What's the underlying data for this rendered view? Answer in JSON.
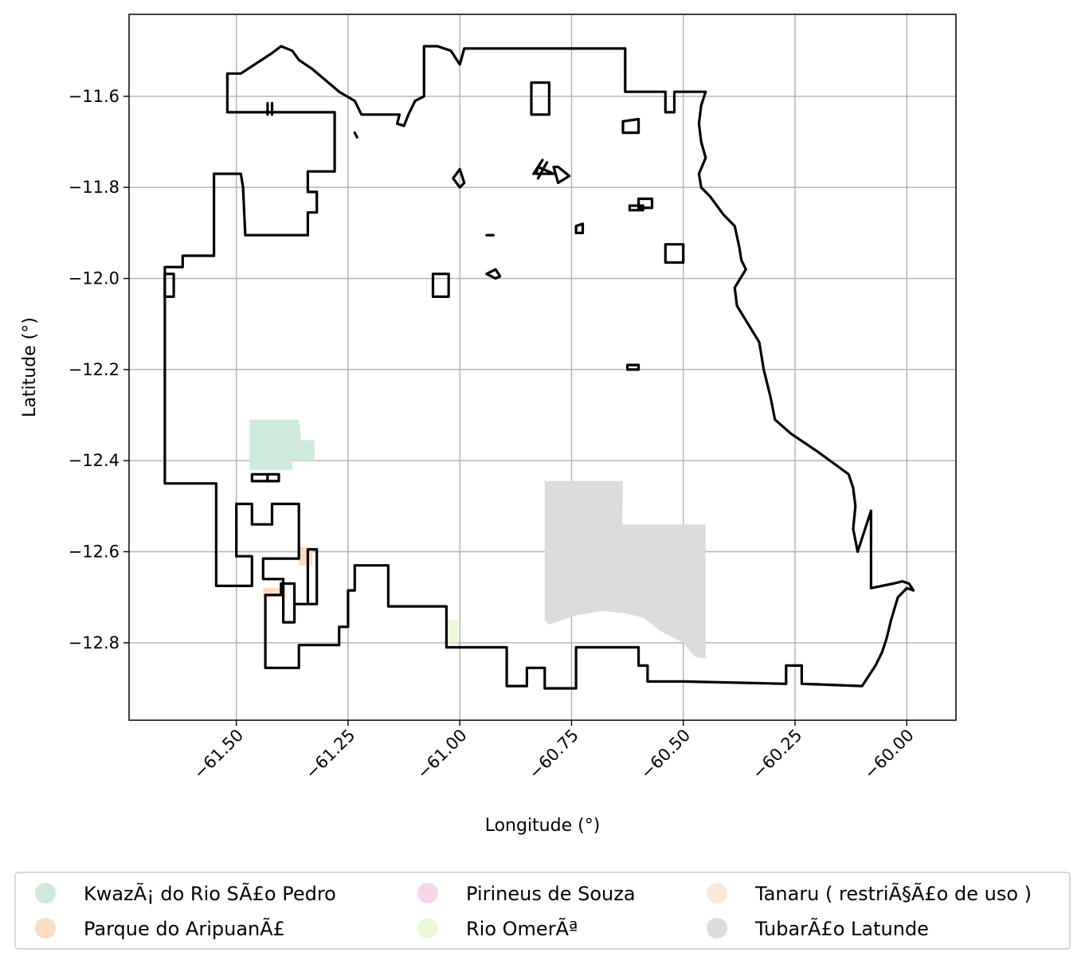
{
  "axes": {
    "xlabel": "Longitude (°)",
    "ylabel": "Latitude (°)",
    "x_ticks": [
      "−61.50",
      "−61.25",
      "−61.00",
      "−60.75",
      "−60.50",
      "−60.25",
      "−60.00"
    ],
    "y_ticks": [
      "−11.6",
      "−11.8",
      "−12.0",
      "−12.2",
      "−12.4",
      "−12.6",
      "−12.8"
    ],
    "grid": true
  },
  "legend": {
    "placement": "bottom",
    "items": [
      {
        "label": "KwazÃ¡ do Rio SÃ£o Pedro",
        "color": "#cdeadb"
      },
      {
        "label": "Parque do AripuanÃ£",
        "color": "#fbdcc4"
      },
      {
        "label": "Pirineus de Souza",
        "color": "#f6d6ea"
      },
      {
        "label": "Rio OmerÃª",
        "color": "#eaf7d8"
      },
      {
        "label": "Tanaru ( restriÃ§Ã£o de uso )",
        "color": "#f8e8d8"
      },
      {
        "label": "TubarÃ£o Latunde",
        "color": "#dcdcdc"
      }
    ]
  },
  "chart_data": {
    "type": "map",
    "xlabel": "Longitude (°)",
    "ylabel": "Latitude (°)",
    "xlim": [
      -61.74,
      -59.89
    ],
    "ylim": [
      -12.97,
      -11.42
    ],
    "x_ticks": [
      -61.5,
      -61.25,
      -61.0,
      -60.75,
      -60.5,
      -60.25,
      -60.0
    ],
    "y_ticks": [
      -11.6,
      -11.8,
      -12.0,
      -12.2,
      -12.4,
      -12.6,
      -12.8
    ],
    "grid": true,
    "regions": [
      {
        "name": "KwazÃ¡ do Rio SÃ£o Pedro",
        "color": "#cdeadb",
        "polygon": [
          [
            -61.47,
            -12.31
          ],
          [
            -61.36,
            -12.31
          ],
          [
            -61.355,
            -12.355
          ],
          [
            -61.325,
            -12.355
          ],
          [
            -61.325,
            -12.4
          ],
          [
            -61.375,
            -12.4
          ],
          [
            -61.375,
            -12.42
          ],
          [
            -61.47,
            -12.42
          ]
        ]
      },
      {
        "name": "Parque do AripuanÃ£",
        "color": "#fbdcc4",
        "polygon": [
          [
            -61.36,
            -12.59
          ],
          [
            -61.33,
            -12.59
          ],
          [
            -61.33,
            -12.63
          ],
          [
            -61.36,
            -12.63
          ]
        ]
      },
      {
        "name": "Parque do AripuanÃ£",
        "color": "#fbdcc4",
        "polygon": [
          [
            -61.44,
            -12.68
          ],
          [
            -61.39,
            -12.68
          ],
          [
            -61.39,
            -12.7
          ],
          [
            -61.44,
            -12.7
          ]
        ]
      },
      {
        "name": "Rio OmerÃª",
        "color": "#eaf7d8",
        "polygon": [
          [
            -61.03,
            -12.75
          ],
          [
            -61.005,
            -12.75
          ],
          [
            -61.005,
            -12.8
          ],
          [
            -61.03,
            -12.8
          ]
        ]
      },
      {
        "name": "TubarÃ£o Latunde",
        "color": "#dcdcdc",
        "polygon": [
          [
            -60.81,
            -12.445
          ],
          [
            -60.635,
            -12.445
          ],
          [
            -60.637,
            -12.54
          ],
          [
            -60.45,
            -12.54
          ],
          [
            -60.45,
            -12.835
          ],
          [
            -60.475,
            -12.83
          ],
          [
            -60.5,
            -12.8
          ],
          [
            -60.55,
            -12.775
          ],
          [
            -60.59,
            -12.745
          ],
          [
            -60.63,
            -12.735
          ],
          [
            -60.68,
            -12.73
          ],
          [
            -60.74,
            -12.74
          ],
          [
            -60.8,
            -12.76
          ],
          [
            -60.81,
            -12.75
          ]
        ]
      }
    ],
    "boundary": {
      "outline": [
        [
          -61.52,
          -11.55
        ],
        [
          -61.49,
          -11.55
        ],
        [
          -61.42,
          -11.505
        ],
        [
          -61.4,
          -11.49
        ],
        [
          -61.375,
          -11.5
        ],
        [
          -61.36,
          -11.52
        ],
        [
          -61.33,
          -11.54
        ],
        [
          -61.3,
          -11.565
        ],
        [
          -61.27,
          -11.59
        ],
        [
          -61.235,
          -11.61
        ],
        [
          -61.22,
          -11.64
        ],
        [
          -61.135,
          -11.64
        ],
        [
          -61.14,
          -11.66
        ],
        [
          -61.125,
          -11.665
        ],
        [
          -61.115,
          -11.64
        ],
        [
          -61.1,
          -11.61
        ],
        [
          -61.08,
          -11.6
        ],
        [
          -61.08,
          -11.49
        ],
        [
          -61.05,
          -11.49
        ],
        [
          -61.02,
          -11.5
        ],
        [
          -61.0,
          -11.53
        ],
        [
          -60.99,
          -11.495
        ],
        [
          -60.63,
          -11.495
        ],
        [
          -60.63,
          -11.59
        ],
        [
          -60.6,
          -11.59
        ],
        [
          -60.54,
          -11.59
        ],
        [
          -60.54,
          -11.635
        ],
        [
          -60.52,
          -11.635
        ],
        [
          -60.52,
          -11.59
        ],
        [
          -60.45,
          -11.59
        ],
        [
          -60.46,
          -11.62
        ],
        [
          -60.465,
          -11.66
        ],
        [
          -60.46,
          -11.7
        ],
        [
          -60.45,
          -11.735
        ],
        [
          -60.465,
          -11.77
        ],
        [
          -60.46,
          -11.8
        ],
        [
          -60.44,
          -11.82
        ],
        [
          -60.41,
          -11.86
        ],
        [
          -60.385,
          -11.885
        ],
        [
          -60.375,
          -11.93
        ],
        [
          -60.37,
          -11.96
        ],
        [
          -60.36,
          -11.98
        ],
        [
          -60.385,
          -12.02
        ],
        [
          -60.38,
          -12.06
        ],
        [
          -60.355,
          -12.1
        ],
        [
          -60.33,
          -12.14
        ],
        [
          -60.32,
          -12.2
        ],
        [
          -60.305,
          -12.26
        ],
        [
          -60.295,
          -12.31
        ],
        [
          -60.26,
          -12.34
        ],
        [
          -60.23,
          -12.36
        ],
        [
          -60.2,
          -12.38
        ],
        [
          -60.165,
          -12.405
        ],
        [
          -60.13,
          -12.43
        ],
        [
          -60.12,
          -12.46
        ],
        [
          -60.115,
          -12.5
        ],
        [
          -60.12,
          -12.55
        ],
        [
          -60.11,
          -12.6
        ],
        [
          -60.08,
          -12.51
        ],
        [
          -60.08,
          -12.68
        ],
        [
          -60.03,
          -12.67
        ],
        [
          -60.01,
          -12.665
        ],
        [
          -59.995,
          -12.67
        ],
        [
          -59.985,
          -12.685
        ],
        [
          -60.0,
          -12.68
        ],
        [
          -60.02,
          -12.7
        ],
        [
          -60.035,
          -12.75
        ],
        [
          -60.045,
          -12.79
        ],
        [
          -60.055,
          -12.82
        ],
        [
          -60.07,
          -12.85
        ],
        [
          -60.1,
          -12.895
        ],
        [
          -60.235,
          -12.89
        ],
        [
          -60.235,
          -12.85
        ],
        [
          -60.27,
          -12.85
        ],
        [
          -60.27,
          -12.89
        ],
        [
          -60.4,
          -12.887
        ],
        [
          -60.5,
          -12.885
        ],
        [
          -60.58,
          -12.885
        ],
        [
          -60.58,
          -12.85
        ],
        [
          -60.6,
          -12.85
        ],
        [
          -60.6,
          -12.81
        ],
        [
          -60.74,
          -12.81
        ],
        [
          -60.74,
          -12.9
        ],
        [
          -60.81,
          -12.9
        ],
        [
          -60.81,
          -12.855
        ],
        [
          -60.85,
          -12.855
        ],
        [
          -60.85,
          -12.895
        ],
        [
          -60.895,
          -12.895
        ],
        [
          -60.895,
          -12.81
        ],
        [
          -61.03,
          -12.81
        ],
        [
          -61.03,
          -12.72
        ],
        [
          -61.16,
          -12.72
        ],
        [
          -61.16,
          -12.63
        ],
        [
          -61.235,
          -12.63
        ],
        [
          -61.235,
          -12.685
        ],
        [
          -61.25,
          -12.685
        ],
        [
          -61.25,
          -12.765
        ],
        [
          -61.27,
          -12.765
        ],
        [
          -61.27,
          -12.805
        ],
        [
          -61.36,
          -12.805
        ],
        [
          -61.36,
          -12.855
        ],
        [
          -61.435,
          -12.855
        ],
        [
          -61.435,
          -12.695
        ],
        [
          -61.4,
          -12.695
        ],
        [
          -61.4,
          -12.67
        ],
        [
          -61.37,
          -12.67
        ],
        [
          -61.37,
          -12.715
        ],
        [
          -61.34,
          -12.715
        ],
        [
          -61.34,
          -12.595
        ],
        [
          -61.32,
          -12.595
        ],
        [
          -61.32,
          -12.715
        ],
        [
          -61.37,
          -12.715
        ],
        [
          -61.37,
          -12.755
        ],
        [
          -61.395,
          -12.755
        ],
        [
          -61.395,
          -12.66
        ],
        [
          -61.44,
          -12.66
        ],
        [
          -61.44,
          -12.615
        ],
        [
          -61.36,
          -12.615
        ],
        [
          -61.36,
          -12.495
        ],
        [
          -61.42,
          -12.495
        ],
        [
          -61.42,
          -12.54
        ],
        [
          -61.465,
          -12.54
        ],
        [
          -61.465,
          -12.495
        ],
        [
          -61.5,
          -12.495
        ],
        [
          -61.5,
          -12.61
        ],
        [
          -61.465,
          -12.61
        ],
        [
          -61.465,
          -12.675
        ],
        [
          -61.545,
          -12.675
        ],
        [
          -61.545,
          -12.45
        ],
        [
          -61.66,
          -12.45
        ],
        [
          -61.66,
          -11.975
        ],
        [
          -61.62,
          -11.975
        ],
        [
          -61.62,
          -11.95
        ],
        [
          -61.55,
          -11.95
        ],
        [
          -61.55,
          -11.77
        ],
        [
          -61.49,
          -11.77
        ],
        [
          -61.485,
          -11.8
        ],
        [
          -61.48,
          -11.905
        ],
        [
          -61.34,
          -11.905
        ],
        [
          -61.34,
          -11.855
        ],
        [
          -61.32,
          -11.855
        ],
        [
          -61.32,
          -11.81
        ],
        [
          -61.34,
          -11.81
        ],
        [
          -61.34,
          -11.765
        ],
        [
          -61.28,
          -11.765
        ],
        [
          -61.28,
          -11.635
        ],
        [
          -61.52,
          -11.635
        ]
      ],
      "islands": [
        [
          [
            -61.66,
            -11.99
          ],
          [
            -61.64,
            -11.99
          ],
          [
            -61.64,
            -12.04
          ],
          [
            -61.66,
            -12.04
          ]
        ],
        [
          [
            -61.465,
            -12.43
          ],
          [
            -61.43,
            -12.43
          ],
          [
            -61.43,
            -12.445
          ],
          [
            -61.465,
            -12.445
          ]
        ],
        [
          [
            -61.43,
            -12.43
          ],
          [
            -61.405,
            -12.43
          ],
          [
            -61.405,
            -12.445
          ],
          [
            -61.43,
            -12.445
          ]
        ],
        [
          [
            -60.84,
            -11.57
          ],
          [
            -60.8,
            -11.57
          ],
          [
            -60.8,
            -11.64
          ],
          [
            -60.84,
            -11.64
          ]
        ],
        [
          [
            -60.635,
            -11.655
          ],
          [
            -60.6,
            -11.65
          ],
          [
            -60.6,
            -11.68
          ],
          [
            -60.635,
            -11.68
          ]
        ],
        [
          [
            -61.06,
            -11.99
          ],
          [
            -61.025,
            -11.99
          ],
          [
            -61.025,
            -12.04
          ],
          [
            -61.06,
            -12.04
          ]
        ],
        [
          [
            -60.54,
            -11.925
          ],
          [
            -60.5,
            -11.925
          ],
          [
            -60.5,
            -11.965
          ],
          [
            -60.54,
            -11.965
          ]
        ],
        [
          [
            -61.015,
            -11.78
          ],
          [
            -61.0,
            -11.76
          ],
          [
            -60.99,
            -11.79
          ],
          [
            -61.0,
            -11.8
          ]
        ],
        [
          [
            -60.83,
            -11.77
          ],
          [
            -60.8,
            -11.77
          ],
          [
            -60.79,
            -11.77
          ],
          [
            -60.825,
            -11.755
          ]
        ],
        [
          [
            -60.78,
            -11.755
          ],
          [
            -60.755,
            -11.775
          ],
          [
            -60.78,
            -11.79
          ],
          [
            -60.79,
            -11.755
          ]
        ],
        [
          [
            -60.6,
            -11.825
          ],
          [
            -60.57,
            -11.825
          ],
          [
            -60.57,
            -11.845
          ],
          [
            -60.6,
            -11.845
          ]
        ],
        [
          [
            -60.62,
            -11.84
          ],
          [
            -60.59,
            -11.84
          ],
          [
            -60.59,
            -11.85
          ],
          [
            -60.62,
            -11.85
          ]
        ],
        [
          [
            -60.74,
            -11.885
          ],
          [
            -60.725,
            -11.88
          ],
          [
            -60.725,
            -11.9
          ],
          [
            -60.74,
            -11.9
          ]
        ],
        [
          [
            -60.94,
            -11.99
          ],
          [
            -60.92,
            -11.98
          ],
          [
            -60.91,
            -11.995
          ],
          [
            -60.92,
            -12.0
          ]
        ],
        [
          [
            -60.625,
            -12.19
          ],
          [
            -60.6,
            -12.19
          ],
          [
            -60.6,
            -12.2
          ],
          [
            -60.625,
            -12.2
          ]
        ]
      ],
      "strokes": [
        [
          [
            -61.235,
            -11.68
          ],
          [
            -61.23,
            -11.69
          ]
        ],
        [
          [
            -61.43,
            -11.615
          ],
          [
            -61.43,
            -11.64
          ]
        ],
        [
          [
            -61.42,
            -11.615
          ],
          [
            -61.42,
            -11.64
          ]
        ],
        [
          [
            -60.94,
            -11.905
          ],
          [
            -60.925,
            -11.905
          ]
        ],
        [
          [
            -60.825,
            -11.78
          ],
          [
            -60.805,
            -11.745
          ]
        ],
        [
          [
            -60.835,
            -11.77
          ],
          [
            -60.815,
            -11.74
          ]
        ]
      ]
    }
  }
}
